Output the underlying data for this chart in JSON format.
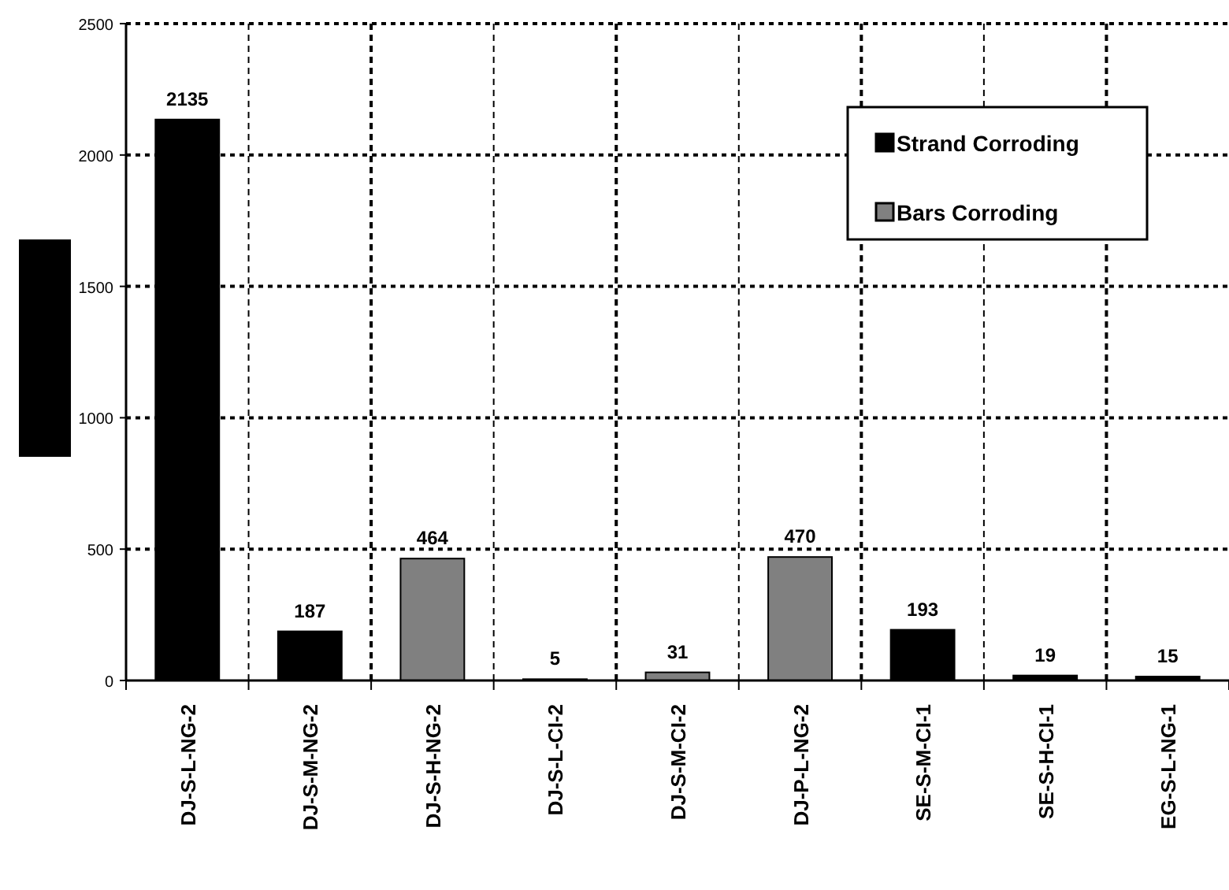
{
  "chart_data": {
    "type": "bar",
    "categories": [
      "DJ-S-L-NG-2",
      "DJ-S-M-NG-2",
      "DJ-S-H-NG-2",
      "DJ-S-L-CI-2",
      "DJ-S-M-CI-2",
      "DJ-P-L-NG-2",
      "SE-S-M-CI-1",
      "SE-S-H-CI-1",
      "EG-S-L-NG-1"
    ],
    "series": [
      {
        "name": "Strand Corroding",
        "color": "#000000",
        "values": [
          2135,
          187,
          null,
          5,
          null,
          null,
          193,
          19,
          15
        ]
      },
      {
        "name": "Bars Corroding",
        "color": "#808080",
        "values": [
          null,
          null,
          464,
          null,
          31,
          470,
          null,
          null,
          null
        ]
      }
    ],
    "ylim": [
      0,
      2500
    ],
    "yticks": [
      0,
      500,
      1000,
      1500,
      2000,
      2500
    ],
    "grid": true,
    "legend": "top right",
    "data_labels": true
  }
}
